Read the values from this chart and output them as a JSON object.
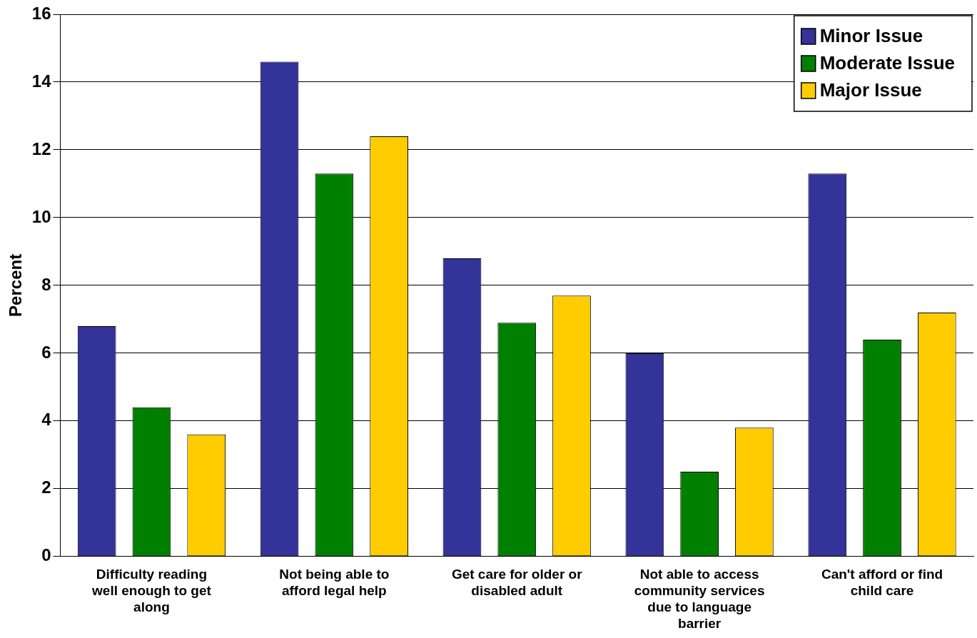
{
  "chart_data": {
    "type": "bar",
    "ylabel": "Percent",
    "categories": [
      "Difficulty reading well enough to get along",
      "Not being able to afford legal help",
      "Get care for older or disabled adult",
      "Not able to access community services due to language barrier",
      "Can't afford or find child care"
    ],
    "series": [
      {
        "name": "Minor Issue",
        "color": "#333399",
        "values": [
          6.8,
          14.6,
          8.8,
          6.0,
          11.3
        ]
      },
      {
        "name": "Moderate Issue",
        "color": "#008000",
        "values": [
          4.4,
          11.3,
          6.9,
          2.5,
          6.4
        ]
      },
      {
        "name": "Major Issue",
        "color": "#ffcc00",
        "values": [
          3.6,
          12.4,
          7.7,
          3.8,
          7.2
        ]
      }
    ],
    "ylim": [
      0,
      16
    ],
    "yticks": [
      0,
      2,
      4,
      6,
      8,
      10,
      12,
      14,
      16
    ],
    "grid": "y",
    "legend": "top right"
  }
}
